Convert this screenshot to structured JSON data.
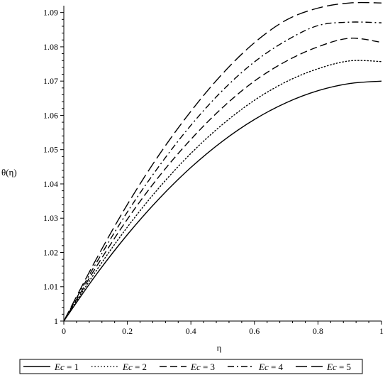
{
  "chart_data": {
    "type": "line",
    "title": "",
    "xlabel": "η",
    "ylabel": "θ(η)",
    "xlim": [
      0,
      1
    ],
    "ylim": [
      1,
      1.092
    ],
    "x_ticks": [
      "0",
      "0.2",
      "0.4",
      "0.6",
      "0.8",
      "1"
    ],
    "y_ticks": [
      "1",
      "1.01",
      "1.02",
      "1.03",
      "1.04",
      "1.05",
      "1.06",
      "1.07",
      "1.08",
      "1.09"
    ],
    "x": [
      0,
      0.1,
      0.2,
      0.3,
      0.4,
      0.5,
      0.6,
      0.7,
      0.8,
      0.9,
      1.0
    ],
    "series": [
      {
        "name": "Ec = 1",
        "dash": "solid",
        "values": [
          1.0,
          1.0133,
          1.0252,
          1.0357,
          1.0448,
          1.0525,
          1.0588,
          1.0637,
          1.0672,
          1.0693,
          1.07
        ]
      },
      {
        "name": "Ec = 2",
        "dash": "dotted",
        "values": [
          1.0,
          1.0144,
          1.0274,
          1.0389,
          1.0489,
          1.0574,
          1.0644,
          1.0698,
          1.0736,
          1.0759,
          1.0757
        ]
      },
      {
        "name": "Ec = 3",
        "dash": "dash",
        "values": [
          1.0,
          1.0155,
          1.0297,
          1.0422,
          1.053,
          1.0623,
          1.07,
          1.0758,
          1.08,
          1.0825,
          1.0813
        ]
      },
      {
        "name": "Ec = 4",
        "dash": "dashdot",
        "values": [
          1.0,
          1.0166,
          1.0318,
          1.0452,
          1.0571,
          1.0673,
          1.0756,
          1.0818,
          1.0862,
          1.0872,
          1.087
        ]
      },
      {
        "name": "Ec = 5",
        "dash": "longdash",
        "values": [
          1.0,
          1.0177,
          1.034,
          1.0485,
          1.0612,
          1.0722,
          1.0812,
          1.0878,
          1.0913,
          1.0928,
          1.0928
        ]
      }
    ],
    "legend": {
      "placement": "bottom",
      "items": [
        {
          "italic": "Ec",
          "rest": " = 1"
        },
        {
          "italic": "Ec",
          "rest": " = 2"
        },
        {
          "italic": "Ec",
          "rest": " = 3"
        },
        {
          "italic": "Ec",
          "rest": " = 4"
        },
        {
          "italic": "Ec",
          "rest": " = 5"
        }
      ]
    },
    "grid": false
  }
}
